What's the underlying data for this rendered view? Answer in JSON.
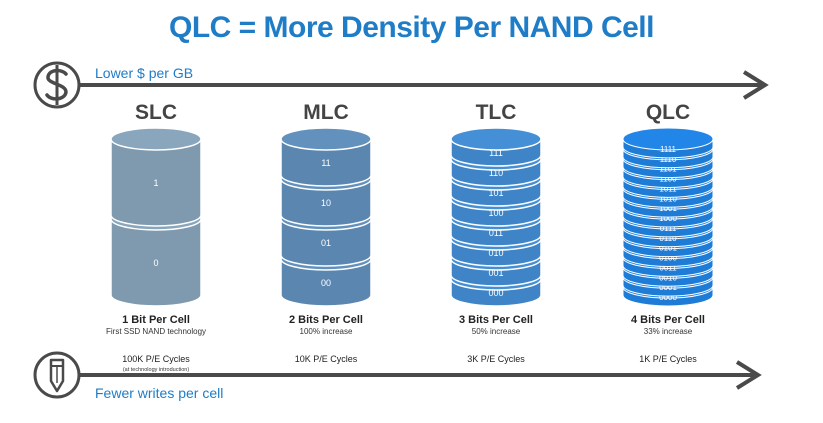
{
  "title": "QLC = More Density Per NAND Cell",
  "colors": {
    "accent": "#1f7cc7",
    "arrow": "#4a4a4a",
    "text_dark": "#444444"
  },
  "top_arrow": {
    "icon": "dollar-icon",
    "label": "Lower $ per GB"
  },
  "bottom_arrow": {
    "icon": "pencil-icon",
    "label": "Fewer writes per cell"
  },
  "columns": [
    {
      "heading": "SLC",
      "color": "#7f9aae",
      "cells": [
        "1",
        "0"
      ],
      "bits": "1 Bit Per Cell",
      "note": "First SSD NAND technology",
      "cycles": "100K P/E Cycles",
      "cycles_note": "(at technology introduction)"
    },
    {
      "heading": "MLC",
      "color": "#5b86b0",
      "cells": [
        "11",
        "10",
        "01",
        "00"
      ],
      "bits": "2 Bits Per Cell",
      "note": "100% increase",
      "cycles": "10K P/E Cycles",
      "cycles_note": ""
    },
    {
      "heading": "TLC",
      "color": "#3f84c6",
      "cells": [
        "111",
        "110",
        "101",
        "100",
        "011",
        "010",
        "001",
        "000"
      ],
      "bits": "3 Bits Per Cell",
      "note": "50% increase",
      "cycles": "3K P/E Cycles",
      "cycles_note": ""
    },
    {
      "heading": "QLC",
      "color": "#1f7cd6",
      "cells": [
        "1111",
        "1110",
        "1101",
        "1100",
        "1011",
        "1010",
        "1001",
        "1000",
        "0111",
        "0110",
        "0101",
        "0100",
        "0011",
        "0010",
        "0001",
        "0000"
      ],
      "bits": "4 Bits Per Cell",
      "note": "33% increase",
      "cycles": "1K P/E Cycles",
      "cycles_note": ""
    }
  ]
}
